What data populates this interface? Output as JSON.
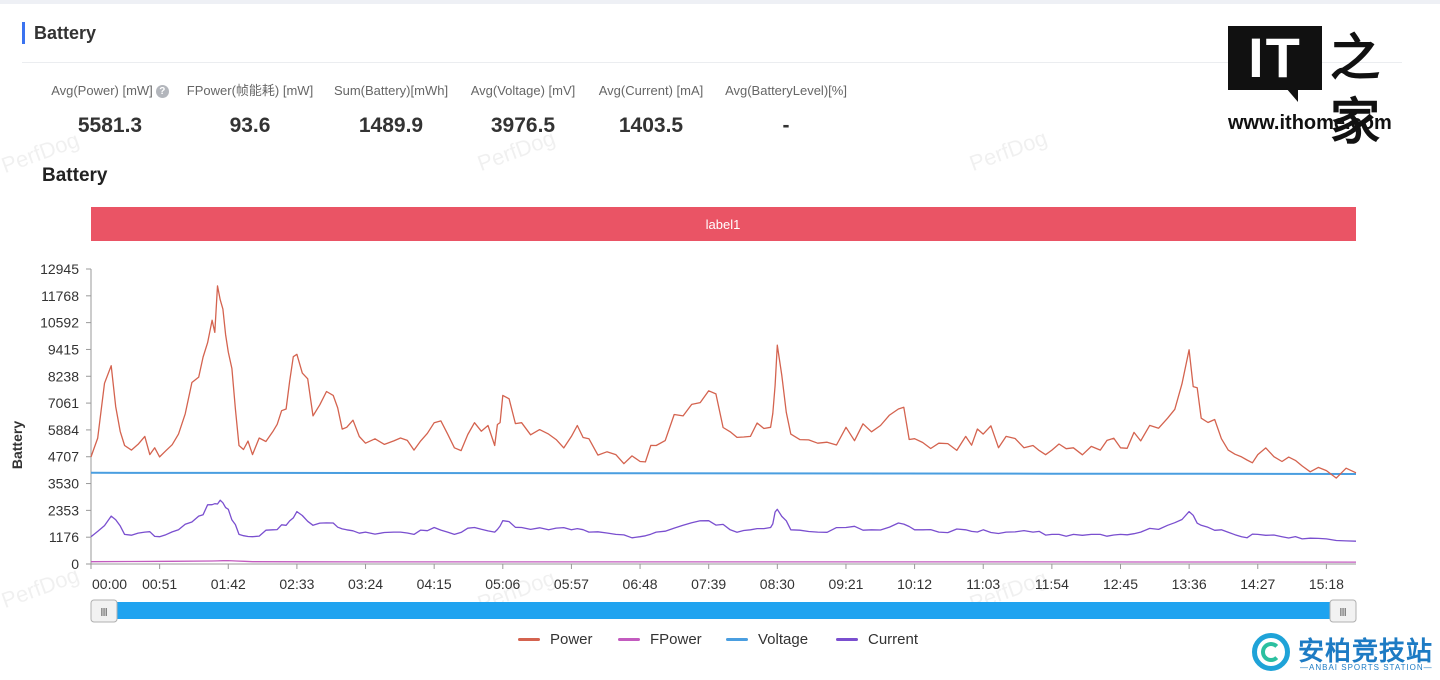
{
  "section": {
    "title": "Battery"
  },
  "metrics": [
    {
      "label": "Avg(Power) [mW]",
      "value": "5581.3",
      "help": "?"
    },
    {
      "label": "FPower(帧能耗) [mW]",
      "value": "93.6"
    },
    {
      "label": "Sum(Battery)[mWh]",
      "value": "1489.9"
    },
    {
      "label": "Avg(Voltage) [mV]",
      "value": "3976.5"
    },
    {
      "label": "Avg(Current) [mA]",
      "value": "1403.5"
    },
    {
      "label": "Avg(BatteryLevel)[%]",
      "value": "-"
    }
  ],
  "chart_title": "Battery",
  "watermark_text": "PerfDog",
  "chart_data": {
    "type": "line",
    "ylabel": "Battery",
    "ylim": [
      0,
      12945
    ],
    "y_ticks": [
      "0",
      "1176",
      "2353",
      "3530",
      "4707",
      "5884",
      "7061",
      "8238",
      "9415",
      "10592",
      "11768",
      "12945"
    ],
    "x_ticks": [
      "00:00",
      "00:51",
      "01:42",
      "02:33",
      "03:24",
      "04:15",
      "05:06",
      "05:57",
      "06:48",
      "07:39",
      "08:30",
      "09:21",
      "10:12",
      "11:03",
      "11:54",
      "12:45",
      "13:36",
      "14:27",
      "15:18"
    ],
    "label_band": {
      "text": "label1",
      "color": "#ea5465"
    },
    "series": [
      {
        "name": "Power",
        "color": "#d4634f",
        "x": [
          "00:00",
          "00:15",
          "00:25",
          "00:40",
          "00:51",
          "01:05",
          "01:20",
          "01:30",
          "01:36",
          "01:42",
          "01:50",
          "02:00",
          "02:15",
          "02:25",
          "02:33",
          "02:45",
          "03:00",
          "03:10",
          "03:24",
          "03:45",
          "04:00",
          "04:15",
          "04:30",
          "04:45",
          "05:00",
          "05:06",
          "05:20",
          "05:40",
          "05:57",
          "06:10",
          "06:30",
          "06:48",
          "07:00",
          "07:20",
          "07:39",
          "07:55",
          "08:10",
          "08:25",
          "08:30",
          "08:40",
          "09:00",
          "09:21",
          "09:40",
          "10:00",
          "10:12",
          "10:30",
          "10:50",
          "11:03",
          "11:20",
          "11:40",
          "11:54",
          "12:10",
          "12:30",
          "12:45",
          "13:00",
          "13:20",
          "13:36",
          "13:45",
          "14:00",
          "14:15",
          "14:27",
          "14:45",
          "15:00",
          "15:18",
          "15:40"
        ],
        "values": [
          4700,
          8700,
          5200,
          5600,
          4700,
          5700,
          8200,
          10700,
          11600,
          9300,
          5200,
          4800,
          5800,
          6800,
          9200,
          6500,
          7400,
          6000,
          5300,
          5400,
          5000,
          6200,
          5100,
          6200,
          5200,
          7400,
          6200,
          5700,
          5600,
          5500,
          4800,
          4500,
          5200,
          6500,
          7600,
          5800,
          5600,
          6000,
          9600,
          5700,
          5300,
          6000,
          5800,
          6800,
          5500,
          5300,
          5600,
          5700,
          5600,
          5200,
          5000,
          5100,
          5000,
          5100,
          5400,
          6400,
          9400,
          6400,
          5500,
          4700,
          4800,
          4500,
          4300,
          4100,
          4000
        ]
      },
      {
        "name": "FPower",
        "color": "#c35bbf",
        "x": [
          "00:00",
          "01:30",
          "01:42",
          "02:00",
          "04:00",
          "08:00",
          "12:00",
          "15:40"
        ],
        "values": [
          100,
          130,
          150,
          100,
          90,
          90,
          90,
          85
        ]
      },
      {
        "name": "Voltage",
        "color": "#4a9ee0",
        "x": [
          "00:00",
          "05:00",
          "10:00",
          "15:40"
        ],
        "values": [
          4000,
          3990,
          3970,
          3950
        ]
      },
      {
        "name": "Current",
        "color": "#7a4fcf",
        "x": [
          "00:00",
          "00:15",
          "00:25",
          "00:40",
          "00:51",
          "01:05",
          "01:20",
          "01:30",
          "01:36",
          "01:42",
          "01:50",
          "02:00",
          "02:15",
          "02:25",
          "02:33",
          "02:45",
          "03:00",
          "03:10",
          "03:24",
          "03:45",
          "04:00",
          "04:15",
          "04:30",
          "04:45",
          "05:00",
          "05:06",
          "05:20",
          "05:40",
          "05:57",
          "06:10",
          "06:30",
          "06:48",
          "07:00",
          "07:20",
          "07:39",
          "07:55",
          "08:10",
          "08:25",
          "08:30",
          "08:40",
          "09:00",
          "09:21",
          "09:40",
          "10:00",
          "10:12",
          "10:30",
          "10:50",
          "11:03",
          "11:20",
          "11:40",
          "11:54",
          "12:10",
          "12:30",
          "12:45",
          "13:00",
          "13:20",
          "13:36",
          "13:45",
          "14:00",
          "14:15",
          "14:27",
          "14:45",
          "15:00",
          "15:18",
          "15:40"
        ],
        "values": [
          1200,
          2100,
          1300,
          1400,
          1200,
          1500,
          2100,
          2600,
          2800,
          2400,
          1300,
          1200,
          1500,
          1700,
          2300,
          1700,
          1800,
          1500,
          1400,
          1400,
          1300,
          1600,
          1300,
          1600,
          1400,
          1900,
          1600,
          1500,
          1500,
          1400,
          1300,
          1200,
          1400,
          1700,
          1900,
          1500,
          1500,
          1600,
          2400,
          1500,
          1400,
          1600,
          1500,
          1800,
          1500,
          1400,
          1500,
          1500,
          1400,
          1400,
          1300,
          1300,
          1300,
          1300,
          1400,
          1700,
          2300,
          1700,
          1500,
          1200,
          1300,
          1200,
          1100,
          1100,
          1000
        ]
      }
    ],
    "legend_position": "bottom-center",
    "grid": false
  },
  "brand": {
    "it": "IT",
    "it_cn": "之家",
    "url": "www.ithome.com",
    "anbai_cn": "安柏竞技站",
    "anbai_en": "—ANBAI SPORTS STATION—"
  },
  "slider": {
    "handle_icon": "grip-icon"
  }
}
